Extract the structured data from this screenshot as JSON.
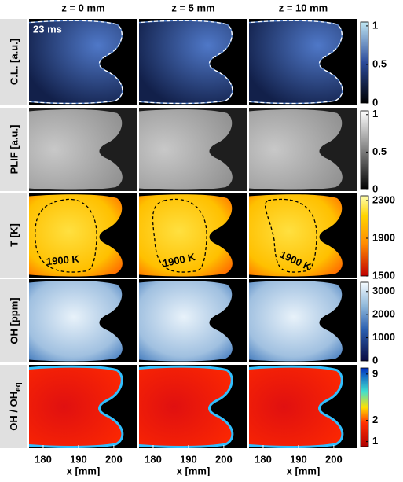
{
  "columns": [
    "z = 0 mm",
    "z = 5 mm",
    "z = 10 mm"
  ],
  "rows": [
    {
      "label": "C.L. [a.u.]",
      "colorbar": {
        "lim": [
          0,
          1.05
        ],
        "ticks": [
          0,
          0.5,
          1
        ],
        "scale": "linear"
      }
    },
    {
      "label": "PLIF [a.u.]",
      "colorbar": {
        "lim": [
          0,
          1.05
        ],
        "ticks": [
          0,
          0.5,
          1
        ],
        "scale": "linear"
      }
    },
    {
      "label": "T [K]",
      "colorbar": {
        "lim": [
          1500,
          2350
        ],
        "ticks": [
          1500,
          1900,
          2300
        ],
        "scale": "linear"
      }
    },
    {
      "label": "OH [ppm]",
      "colorbar": {
        "lim": [
          0,
          3400
        ],
        "ticks": [
          0,
          1000,
          2000,
          3000
        ],
        "scale": "linear"
      }
    },
    {
      "label": {
        "text": "OH / OH",
        "subscript": "eq"
      },
      "colorbar": {
        "lim": [
          0.85,
          11
        ],
        "ticks": [
          1,
          2,
          9
        ],
        "scale": "log"
      }
    }
  ],
  "time_label": "23 ms",
  "contour_labels": [
    "1900 K",
    "1900 K",
    "1900 K"
  ],
  "x_axis": {
    "label": "x [mm]",
    "lim": [
      176,
      206.7
    ],
    "ticks": [
      180,
      190,
      200
    ]
  }
}
